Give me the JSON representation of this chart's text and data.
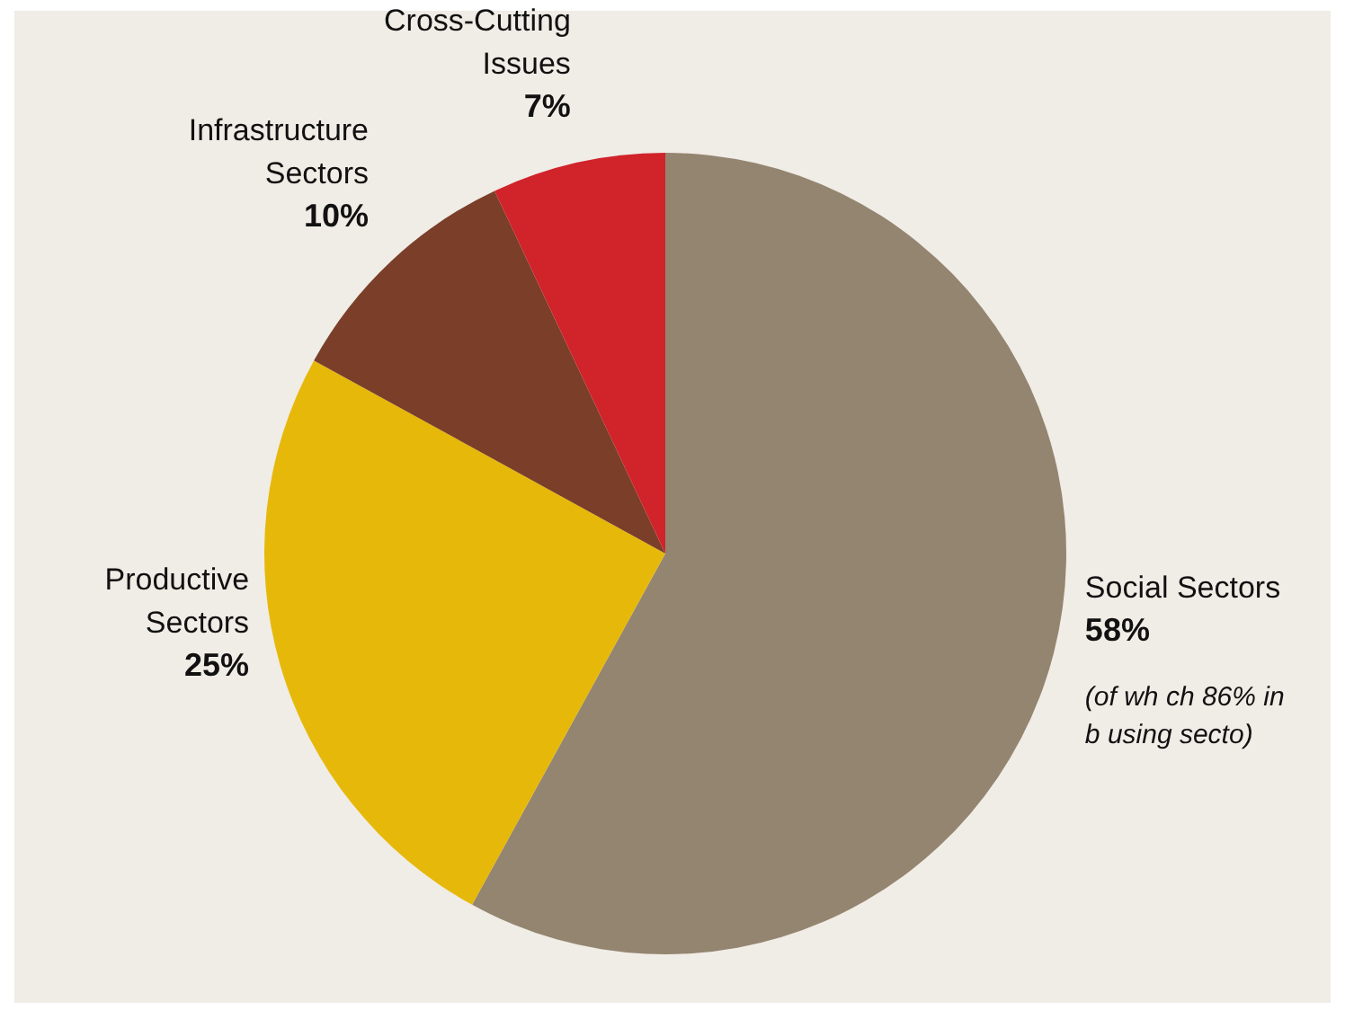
{
  "chart_data": {
    "type": "pie",
    "categories": [
      "Social Sectors",
      "Productive Sectors",
      "Infrastructure Sectors",
      "Cross-Cutting Issues"
    ],
    "values": [
      58,
      25,
      10,
      7
    ],
    "value_labels": [
      "58%",
      "25%",
      "10%",
      "7%"
    ],
    "colors": [
      "#948570",
      "#e6b80a",
      "#7a3e29",
      "#d0232a"
    ],
    "annotations": [
      "(of wh ch 86% in b using secto)"
    ]
  }
}
